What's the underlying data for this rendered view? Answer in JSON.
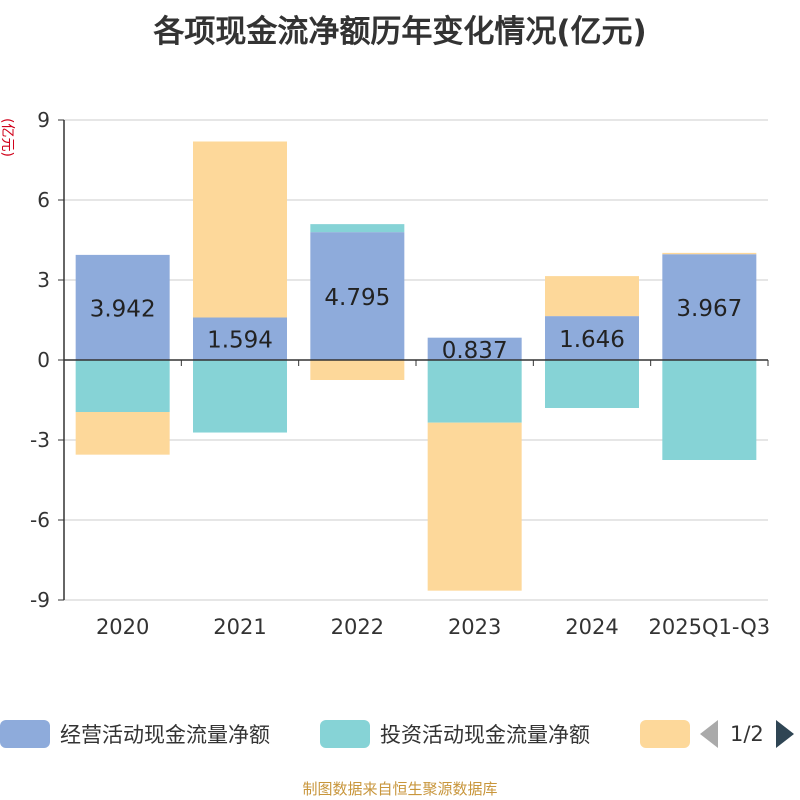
{
  "title": "各项现金流净额历年变化情况(亿元)",
  "unit_label": "(亿元)",
  "source": "制图数据来自恒生聚源数据库",
  "legend": {
    "items": [
      {
        "label": "经营活动现金流量净额",
        "color": "#8eabdb"
      },
      {
        "label": "投资活动现金流量净额",
        "color": "#86d3d6"
      },
      {
        "label": "",
        "color": "#fdd89a"
      }
    ],
    "page": "1/2"
  },
  "chart_data": {
    "type": "bar",
    "stacked": true,
    "categories": [
      "2020",
      "2021",
      "2022",
      "2023",
      "2024",
      "2025Q1-Q3"
    ],
    "ylim": [
      -9,
      9
    ],
    "yticks": [
      9,
      6,
      3,
      0,
      -3,
      -6,
      -9
    ],
    "grid": true,
    "series": [
      {
        "name": "经营活动现金流量净额",
        "color": "#8eabdb",
        "values": [
          3.942,
          1.594,
          4.795,
          0.837,
          1.646,
          3.967
        ]
      },
      {
        "name": "投资活动现金流量净额",
        "color": "#86d3d6",
        "values": [
          -1.95,
          -2.72,
          0.3,
          -2.35,
          -1.8,
          -3.75
        ]
      },
      {
        "color": "#fdd89a",
        "values": [
          -1.6,
          6.6,
          -0.75,
          -6.3,
          1.5,
          0.05
        ]
      }
    ],
    "data_labels": [
      "3.942",
      "1.594",
      "4.795",
      "0.837",
      "1.646",
      "3.967"
    ]
  }
}
